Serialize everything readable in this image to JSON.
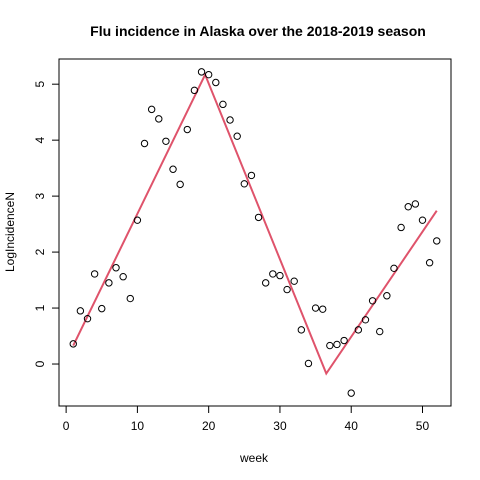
{
  "chart_data": {
    "type": "scatter",
    "title": "Flu incidence in Alaska over the 2018-2019 season",
    "xlabel": "week",
    "ylabel": "LogIncidenceN",
    "xlim": [
      -1,
      54
    ],
    "ylim": [
      -0.75,
      5.45
    ],
    "xticks": [
      0,
      10,
      20,
      30,
      40,
      50
    ],
    "yticks": [
      0,
      1,
      2,
      3,
      4,
      5
    ],
    "grid": false,
    "legend": "none",
    "points": {
      "x": [
        1,
        2,
        3,
        4,
        5,
        6,
        7,
        8,
        9,
        10,
        11,
        12,
        13,
        14,
        15,
        16,
        17,
        18,
        19,
        20,
        21,
        22,
        23,
        24,
        25,
        26,
        27,
        28,
        29,
        30,
        31,
        32,
        33,
        34,
        35,
        36,
        37,
        38,
        39,
        40,
        41,
        42,
        43,
        44,
        45,
        46,
        47,
        48,
        49,
        50,
        51,
        52
      ],
      "y": [
        0.36,
        0.95,
        0.81,
        1.61,
        0.99,
        1.45,
        1.72,
        1.56,
        1.17,
        2.57,
        3.94,
        4.55,
        4.38,
        3.98,
        3.48,
        3.21,
        4.19,
        4.89,
        5.22,
        5.17,
        5.03,
        4.64,
        4.36,
        4.07,
        3.22,
        3.37,
        2.62,
        1.45,
        1.61,
        1.58,
        1.33,
        1.48,
        0.61,
        0.01,
        1.0,
        0.98,
        0.33,
        0.35,
        0.42,
        -0.52,
        0.61,
        0.79,
        1.13,
        0.58,
        1.22,
        1.71,
        2.44,
        2.81,
        2.86,
        2.57,
        1.81,
        2.2
      ],
      "color": "#000000"
    },
    "fit_line": {
      "x": [
        1,
        19.5,
        36.5,
        52
      ],
      "y": [
        0.33,
        5.17,
        -0.17,
        2.74
      ],
      "color": "#DF536B"
    }
  }
}
